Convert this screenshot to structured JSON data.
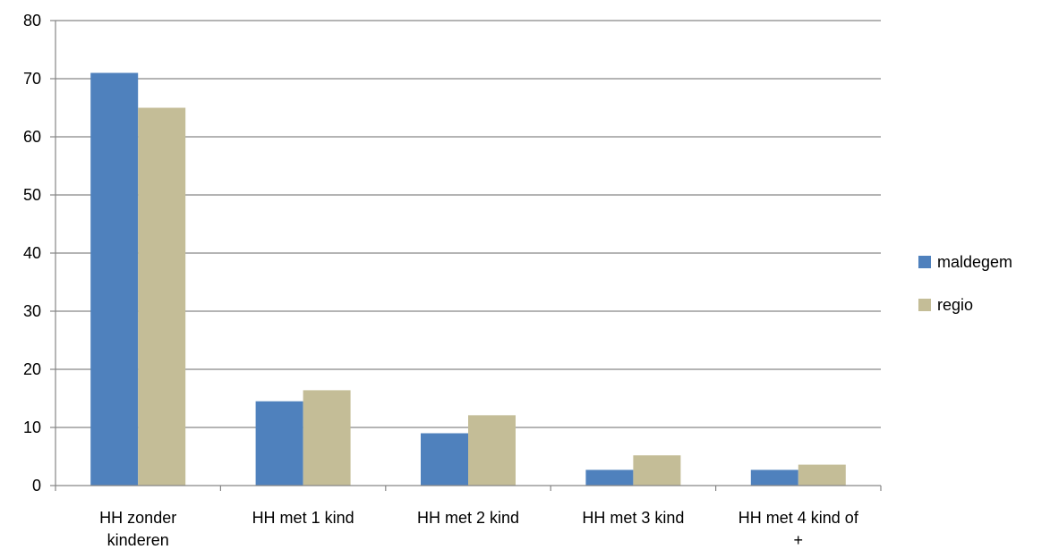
{
  "chart_data": {
    "type": "bar",
    "categories": [
      [
        "HH zonder",
        "kinderen"
      ],
      [
        "HH met 1 kind"
      ],
      [
        "HH met 2 kind"
      ],
      [
        "HH met 3 kind"
      ],
      [
        "HH met 4 kind of",
        "+"
      ]
    ],
    "series": [
      {
        "name": "maldegem",
        "color": "#4F81BD",
        "values": [
          71,
          14.5,
          9,
          2.7,
          2.7
        ]
      },
      {
        "name": "regio",
        "color": "#C4BD97",
        "values": [
          65,
          16.4,
          12.1,
          5.2,
          3.6
        ]
      }
    ],
    "ylim": [
      0,
      80
    ],
    "yticks": [
      0,
      10,
      20,
      30,
      40,
      50,
      60,
      70,
      80
    ],
    "grid": true,
    "legend_position": "right"
  }
}
